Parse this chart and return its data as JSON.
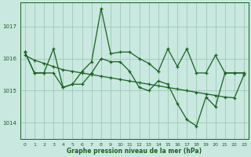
{
  "title": "Graphe pression niveau de la mer (hPa)",
  "background_color": "#c8e8e0",
  "grid_color": "#a0c8b8",
  "line_color": "#1a6020",
  "xlim": [
    -0.5,
    23.5
  ],
  "ylim": [
    1013.5,
    1017.75
  ],
  "yticks": [
    1014,
    1015,
    1016,
    1017
  ],
  "xticks": [
    0,
    1,
    2,
    3,
    4,
    5,
    6,
    7,
    8,
    9,
    10,
    11,
    12,
    13,
    14,
    15,
    16,
    17,
    18,
    19,
    20,
    21,
    22,
    23
  ],
  "series1": [
    1016.2,
    1015.55,
    1015.55,
    1016.3,
    1015.1,
    1015.2,
    1015.6,
    1015.9,
    1017.55,
    1016.15,
    1016.2,
    1016.2,
    1016.0,
    1015.85,
    1015.6,
    1016.3,
    1015.75,
    1016.3,
    1015.55,
    1015.55,
    1016.1,
    1015.55,
    1015.55,
    1015.55
  ],
  "series2": [
    1016.2,
    1015.55,
    1015.55,
    1015.55,
    1015.1,
    1015.2,
    1015.2,
    1015.55,
    1016.0,
    1015.9,
    1015.9,
    1015.6,
    1015.1,
    1015.0,
    1015.3,
    1015.2,
    1014.6,
    1014.1,
    1013.9,
    1014.8,
    1014.5,
    1015.55,
    1015.55,
    1015.55
  ],
  "series3": [
    1016.1,
    1015.95,
    1015.85,
    1015.75,
    1015.65,
    1015.6,
    1015.55,
    1015.5,
    1015.45,
    1015.4,
    1015.35,
    1015.3,
    1015.25,
    1015.2,
    1015.15,
    1015.1,
    1015.05,
    1015.0,
    1014.95,
    1014.9,
    1014.85,
    1014.8,
    1014.78,
    1015.5
  ]
}
